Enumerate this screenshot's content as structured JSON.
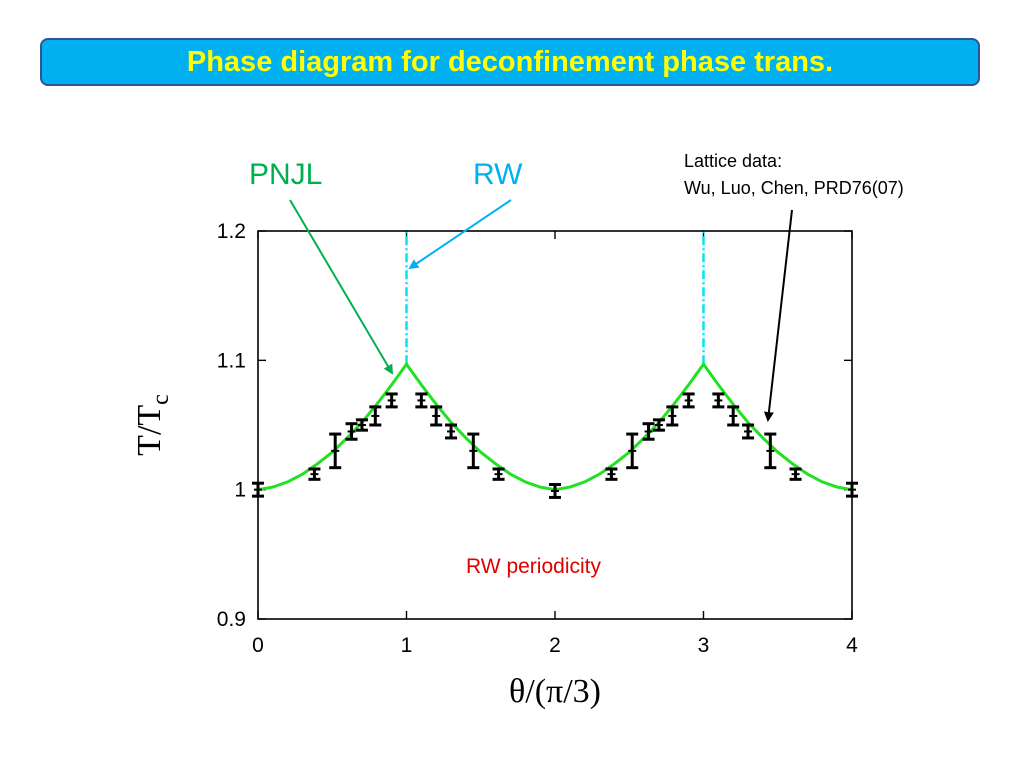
{
  "title": "Phase diagram for deconfinement phase trans.",
  "annotations": {
    "pnjl": "PNJL",
    "rw": "RW",
    "lattice_line1": "Lattice data:",
    "lattice_line2": "Wu, Luo, Chen, PRD76(07)",
    "periodicity": "RW periodicity"
  },
  "colors": {
    "banner_bg": "#00b0f0",
    "banner_border": "#2f5597",
    "title_text": "#ffff00",
    "pnjl_curve": "#22e022",
    "pnjl_label": "#00b050",
    "rw_line": "#00e5f0",
    "rw_label": "#00b0f0",
    "lattice_points": "#000000",
    "periodicity_text": "#e00000"
  },
  "chart_data": {
    "type": "line",
    "xlabel": "θ/(π/3)",
    "ylabel": "T/T",
    "ylabel_subscript": "c",
    "xlim": [
      0,
      4
    ],
    "ylim": [
      0.9,
      1.2
    ],
    "xticks": [
      0,
      1,
      2,
      3,
      4
    ],
    "yticks": [
      0.9,
      1,
      1.1,
      1.2
    ],
    "ytick_labels": [
      "0.9",
      "1",
      "1.1",
      "1.2"
    ],
    "grid": false,
    "series": [
      {
        "name": "PNJL",
        "kind": "line",
        "x": [
          0,
          0.1,
          0.2,
          0.3,
          0.4,
          0.5,
          0.6,
          0.7,
          0.8,
          0.9,
          1.0,
          1.1,
          1.2,
          1.3,
          1.4,
          1.5,
          1.6,
          1.7,
          1.8,
          1.9,
          2.0,
          2.1,
          2.2,
          2.3,
          2.4,
          2.5,
          2.6,
          2.7,
          2.8,
          2.9,
          3.0,
          3.1,
          3.2,
          3.3,
          3.4,
          3.5,
          3.6,
          3.7,
          3.8,
          3.9,
          4.0
        ],
        "y": [
          1.0,
          1.002,
          1.006,
          1.012,
          1.02,
          1.029,
          1.04,
          1.052,
          1.066,
          1.081,
          1.097,
          1.081,
          1.066,
          1.052,
          1.04,
          1.029,
          1.02,
          1.012,
          1.006,
          1.002,
          1.0,
          1.002,
          1.006,
          1.012,
          1.02,
          1.029,
          1.04,
          1.052,
          1.066,
          1.081,
          1.097,
          1.081,
          1.066,
          1.052,
          1.04,
          1.029,
          1.02,
          1.012,
          1.006,
          1.002,
          1.0
        ]
      },
      {
        "name": "Lattice data",
        "kind": "errorbar",
        "points": [
          {
            "x": 0.0,
            "y": 1.0,
            "err": 0.005
          },
          {
            "x": 0.38,
            "y": 1.012,
            "err": 0.004
          },
          {
            "x": 0.52,
            "y": 1.03,
            "err": 0.013
          },
          {
            "x": 0.63,
            "y": 1.045,
            "err": 0.006
          },
          {
            "x": 0.7,
            "y": 1.05,
            "err": 0.004
          },
          {
            "x": 0.79,
            "y": 1.057,
            "err": 0.007
          },
          {
            "x": 0.9,
            "y": 1.069,
            "err": 0.005
          },
          {
            "x": 1.1,
            "y": 1.069,
            "err": 0.005
          },
          {
            "x": 1.2,
            "y": 1.057,
            "err": 0.007
          },
          {
            "x": 1.3,
            "y": 1.045,
            "err": 0.005
          },
          {
            "x": 1.45,
            "y": 1.03,
            "err": 0.013
          },
          {
            "x": 1.62,
            "y": 1.012,
            "err": 0.004
          },
          {
            "x": 2.0,
            "y": 0.999,
            "err": 0.005
          },
          {
            "x": 2.38,
            "y": 1.012,
            "err": 0.004
          },
          {
            "x": 2.52,
            "y": 1.03,
            "err": 0.013
          },
          {
            "x": 2.63,
            "y": 1.045,
            "err": 0.006
          },
          {
            "x": 2.7,
            "y": 1.05,
            "err": 0.004
          },
          {
            "x": 2.79,
            "y": 1.057,
            "err": 0.007
          },
          {
            "x": 2.9,
            "y": 1.069,
            "err": 0.005
          },
          {
            "x": 3.1,
            "y": 1.069,
            "err": 0.005
          },
          {
            "x": 3.2,
            "y": 1.057,
            "err": 0.007
          },
          {
            "x": 3.3,
            "y": 1.045,
            "err": 0.005
          },
          {
            "x": 3.45,
            "y": 1.03,
            "err": 0.013
          },
          {
            "x": 3.62,
            "y": 1.012,
            "err": 0.004
          },
          {
            "x": 4.0,
            "y": 1.0,
            "err": 0.005
          }
        ]
      },
      {
        "name": "RW",
        "kind": "vline",
        "x": [
          1,
          3
        ],
        "y_from": 1.097,
        "y_to": 1.2
      }
    ]
  }
}
